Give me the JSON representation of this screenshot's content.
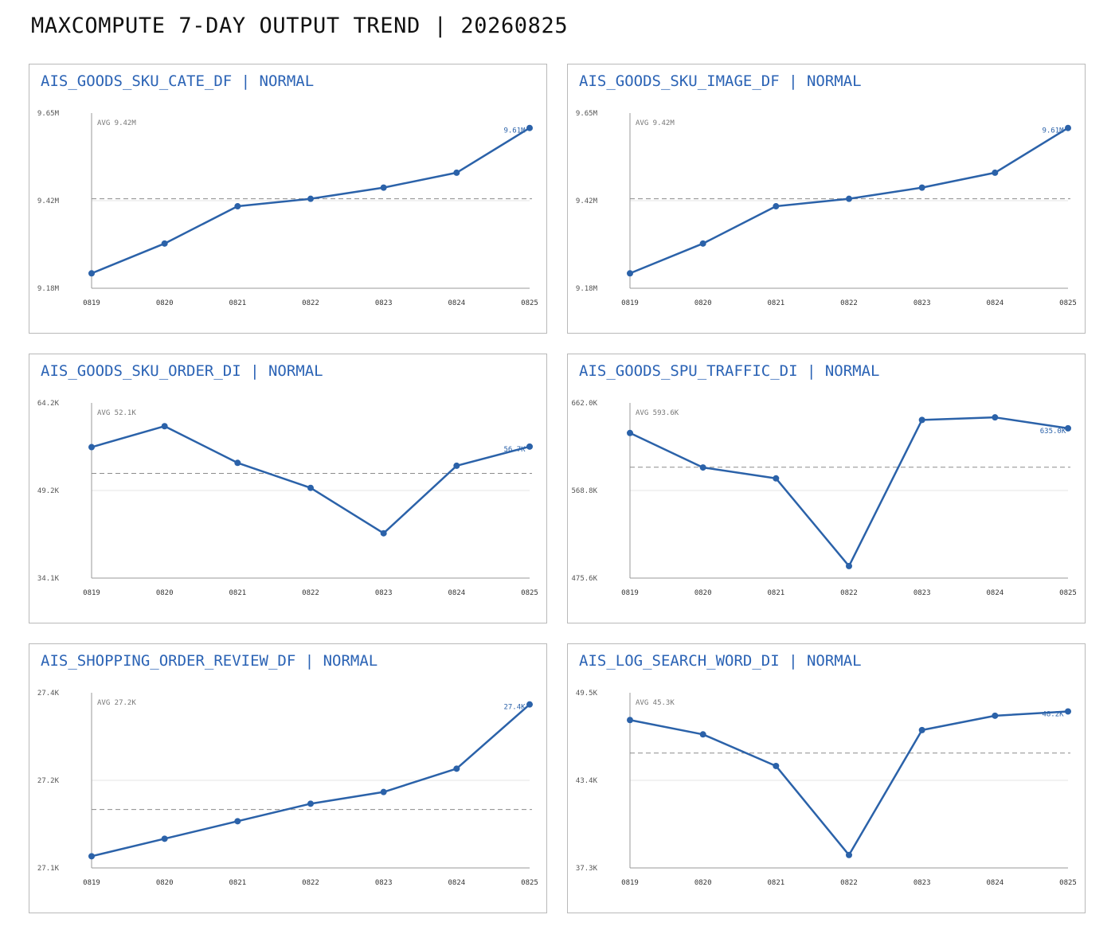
{
  "page": {
    "title": "MAXCOMPUTE 7-DAY OUTPUT TREND | 20260825"
  },
  "colors": {
    "line": "#2b62a9",
    "title": "#2b63b5",
    "axis": "#999999",
    "grid": "#e5e5e5",
    "avg": "#8c8c8c",
    "text": "#555555"
  },
  "chart_data": [
    {
      "type": "line",
      "title": "AIS_GOODS_SKU_CATE_DF | NORMAL",
      "x": [
        "0819",
        "0820",
        "0821",
        "0822",
        "0823",
        "0824",
        "0825"
      ],
      "values": [
        9.22,
        9.3,
        9.4,
        9.42,
        9.45,
        9.49,
        9.61
      ],
      "unit": "M",
      "ylim": [
        9.18,
        9.65
      ],
      "yticks": [
        "9.65M",
        "9.42M",
        "9.18M"
      ],
      "avg": 9.42,
      "avg_label": "AVG 9.42M",
      "last_label": "9.61M"
    },
    {
      "type": "line",
      "title": "AIS_GOODS_SKU_IMAGE_DF | NORMAL",
      "x": [
        "0819",
        "0820",
        "0821",
        "0822",
        "0823",
        "0824",
        "0825"
      ],
      "values": [
        9.22,
        9.3,
        9.4,
        9.42,
        9.45,
        9.49,
        9.61
      ],
      "unit": "M",
      "ylim": [
        9.18,
        9.65
      ],
      "yticks": [
        "9.65M",
        "9.42M",
        "9.18M"
      ],
      "avg": 9.42,
      "avg_label": "AVG 9.42M",
      "last_label": "9.61M"
    },
    {
      "type": "line",
      "title": "AIS_GOODS_SKU_ORDER_DI | NORMAL",
      "x": [
        "0819",
        "0820",
        "0821",
        "0822",
        "0823",
        "0824",
        "0825"
      ],
      "values": [
        56.6,
        60.2,
        53.9,
        49.6,
        41.8,
        53.4,
        56.7
      ],
      "unit": "K",
      "ylim": [
        34.1,
        64.2
      ],
      "yticks": [
        "64.2K",
        "49.2K",
        "34.1K"
      ],
      "avg": 52.1,
      "avg_label": "AVG 52.1K",
      "last_label": "56.7K"
    },
    {
      "type": "line",
      "title": "AIS_GOODS_SPU_TRAFFIC_DI | NORMAL",
      "x": [
        "0819",
        "0820",
        "0821",
        "0822",
        "0823",
        "0824",
        "0825"
      ],
      "values": [
        630.0,
        593.3,
        581.7,
        488.4,
        643.9,
        646.6,
        635.0
      ],
      "unit": "K",
      "ylim": [
        475.6,
        662.0
      ],
      "yticks": [
        "662.0K",
        "568.8K",
        "475.6K"
      ],
      "avg": 593.6,
      "avg_label": "AVG 593.6K",
      "last_label": "635.0K"
    },
    {
      "type": "line",
      "title": "AIS_SHOPPING_ORDER_REVIEW_DF | NORMAL",
      "x": [
        "0819",
        "0820",
        "0821",
        "0822",
        "0823",
        "0824",
        "0825"
      ],
      "values": [
        27.12,
        27.15,
        27.18,
        27.21,
        27.23,
        27.27,
        27.38
      ],
      "unit": "K",
      "ylim": [
        27.1,
        27.4
      ],
      "yticks": [
        "27.4K",
        "27.2K",
        "27.1K"
      ],
      "avg": 27.2,
      "avg_label": "AVG 27.2K",
      "last_label": "27.4K"
    },
    {
      "type": "line",
      "title": "AIS_LOG_SEARCH_WORD_DI | NORMAL",
      "x": [
        "0819",
        "0820",
        "0821",
        "0822",
        "0823",
        "0824",
        "0825"
      ],
      "values": [
        47.6,
        46.6,
        44.4,
        38.2,
        46.9,
        47.9,
        48.2
      ],
      "unit": "K",
      "ylim": [
        37.3,
        49.5
      ],
      "yticks": [
        "49.5K",
        "43.4K",
        "37.3K"
      ],
      "avg": 45.3,
      "avg_label": "AVG 45.3K",
      "last_label": "48.2K"
    }
  ]
}
